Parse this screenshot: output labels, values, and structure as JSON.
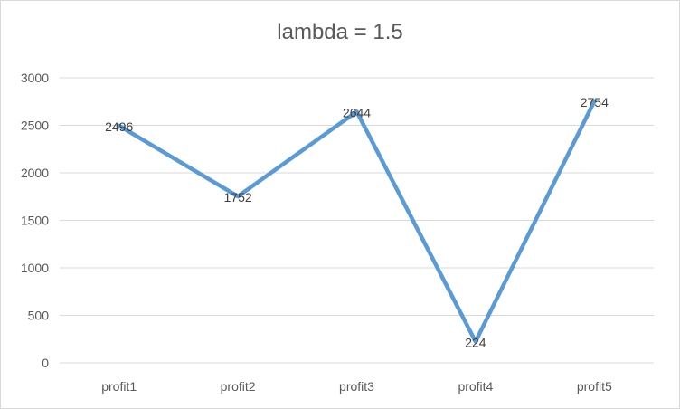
{
  "chart_data": {
    "type": "line",
    "title": "lambda = 1.5",
    "categories": [
      "profit1",
      "profit2",
      "profit3",
      "profit4",
      "profit5"
    ],
    "series": [
      {
        "values": [
          2496,
          1752,
          2644,
          224,
          2754
        ]
      }
    ],
    "xlabel": "",
    "ylabel": "",
    "ylim": [
      0,
      3000
    ],
    "yticks": [
      0,
      500,
      1000,
      1500,
      2000,
      2500,
      3000
    ],
    "grid": true,
    "legend": "none",
    "data_labels": true,
    "line_color": "#5b9bd5",
    "grid_color": "#d9d9d9",
    "text_color": "#595959"
  }
}
